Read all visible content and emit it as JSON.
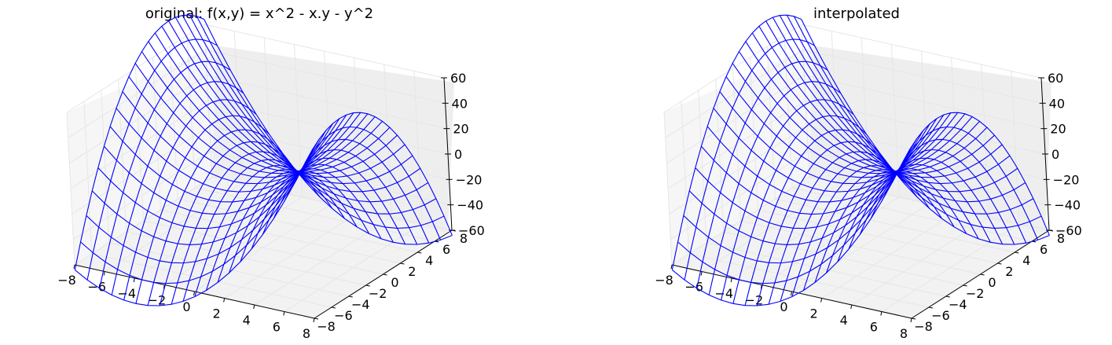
{
  "chart_data": [
    {
      "type": "surface",
      "style": "wireframe",
      "title": "original: f(x,y) = x^2 - x.y - y^2",
      "function": "x^2 - x*y - y^2",
      "x_range": [
        -8,
        8
      ],
      "y_range": [
        -8,
        8
      ],
      "z_range": [
        -60,
        60
      ],
      "grid_lines": 20,
      "x_ticks": [
        "−8",
        "−6",
        "−4",
        "−2",
        "0",
        "2",
        "4",
        "6",
        "8"
      ],
      "y_ticks": [
        "−8",
        "−6",
        "−4",
        "−2",
        "0",
        "2",
        "4",
        "6",
        "8"
      ],
      "z_ticks": [
        "−60",
        "−40",
        "−20",
        "0",
        "20",
        "40",
        "60"
      ],
      "color": "#0000ff",
      "grid": true
    },
    {
      "type": "surface",
      "style": "wireframe",
      "title": "interpolated",
      "function": "x^2 - x*y - y^2",
      "x_range": [
        -8,
        8
      ],
      "y_range": [
        -8,
        8
      ],
      "z_range": [
        -60,
        60
      ],
      "grid_lines": 20,
      "x_ticks": [
        "−8",
        "−6",
        "−4",
        "−2",
        "0",
        "2",
        "4",
        "6",
        "8"
      ],
      "y_ticks": [
        "−8",
        "−6",
        "−4",
        "−2",
        "0",
        "2",
        "4",
        "6",
        "8"
      ],
      "z_ticks": [
        "−60",
        "−40",
        "−20",
        "0",
        "20",
        "40",
        "60"
      ],
      "color": "#0000ff",
      "grid": true
    }
  ]
}
